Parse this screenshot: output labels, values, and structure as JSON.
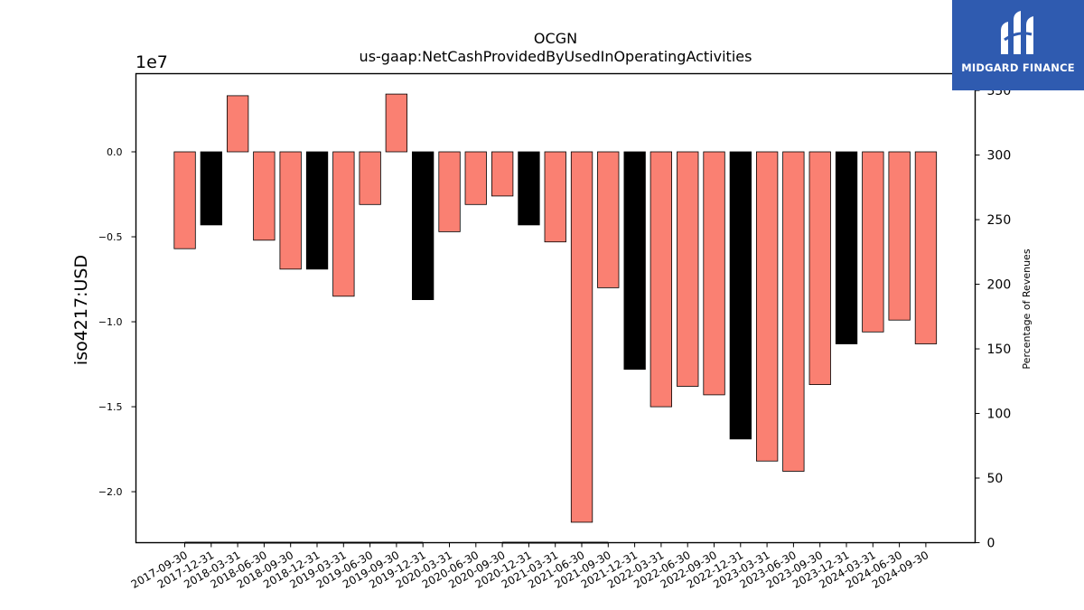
{
  "chart_data": {
    "type": "bar",
    "title": "OCGN",
    "subtitle": "us-gaap:NetCashProvidedByUsedInOperatingActivities",
    "ylabel": "iso4217:USD",
    "y_offset_label": "1e7",
    "y2label": "Percentage of Revenues",
    "ylim": [
      -23000000.0,
      4600000.0
    ],
    "y_ticks": [
      0.0,
      -0.5,
      -1.0,
      -1.5,
      -2.0
    ],
    "y_tick_labels": [
      "0.0",
      "−0.5",
      "−1.0",
      "−1.5",
      "−2.0"
    ],
    "y2lim": [
      0,
      363
    ],
    "y2_ticks": [
      0,
      50,
      100,
      150,
      200,
      250,
      300,
      350
    ],
    "y2_tick_labels": [
      "0",
      "50",
      "100",
      "150",
      "200",
      "250",
      "300",
      "350"
    ],
    "grid": false,
    "categories": [
      "2017-09-30",
      "2017-12-31",
      "2018-03-31",
      "2018-06-30",
      "2018-09-30",
      "2018-12-31",
      "2019-03-31",
      "2019-06-30",
      "2019-09-30",
      "2019-12-31",
      "2020-03-31",
      "2020-06-30",
      "2020-09-30",
      "2020-12-31",
      "2021-03-31",
      "2021-06-30",
      "2021-09-30",
      "2021-12-31",
      "2022-03-31",
      "2022-06-30",
      "2022-09-30",
      "2022-12-31",
      "2023-03-31",
      "2023-06-30",
      "2023-09-30",
      "2023-12-31",
      "2024-03-31",
      "2024-06-30",
      "2024-09-30"
    ],
    "values": [
      -5700000,
      -4300000,
      3300000,
      -5200000,
      -6900000,
      -6900000,
      -8500000,
      -3100000,
      3400000,
      -8700000,
      -4700000,
      -3100000,
      -2600000,
      -4300000,
      -5300000,
      -21800000,
      -8000000,
      -12800000,
      -15000000,
      -13800000,
      -14300000,
      -16900000,
      -18200000,
      -18800000,
      -13700000,
      -11300000,
      -10600000,
      -9900000,
      -11300000
    ],
    "bar_colors": [
      "#fa8072",
      "#000000",
      "#fa8072",
      "#fa8072",
      "#fa8072",
      "#000000",
      "#fa8072",
      "#fa8072",
      "#fa8072",
      "#000000",
      "#fa8072",
      "#fa8072",
      "#fa8072",
      "#000000",
      "#fa8072",
      "#fa8072",
      "#fa8072",
      "#000000",
      "#fa8072",
      "#fa8072",
      "#fa8072",
      "#000000",
      "#fa8072",
      "#fa8072",
      "#fa8072",
      "#000000",
      "#fa8072",
      "#fa8072",
      "#fa8072"
    ],
    "percentage_of_revenues": [
      0,
      0,
      0,
      0,
      0,
      0,
      0,
      0,
      0,
      0,
      null,
      null,
      0,
      0,
      0,
      0,
      0,
      null,
      null,
      null,
      null,
      null,
      null,
      null,
      null,
      null,
      null,
      null,
      null
    ]
  },
  "logo": {
    "text": "MIDGARD FINANCE",
    "color": "#2f5bb0"
  }
}
